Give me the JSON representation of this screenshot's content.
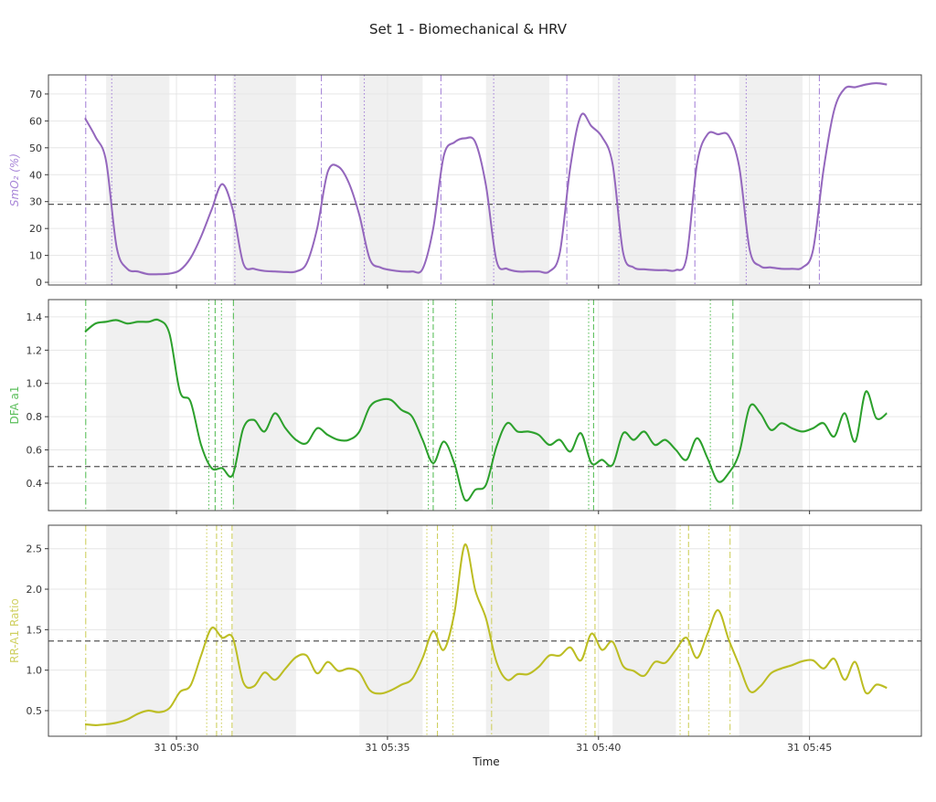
{
  "chart_data": {
    "title": "Set 1 - Biomechanical & HRV",
    "xlabel": "Time",
    "type": "line",
    "xlim": [
      "05:26:58",
      "05:47:39"
    ],
    "x_ticks": [
      {
        "t": "05:30:00",
        "label": "31 05:30"
      },
      {
        "t": "05:35:00",
        "label": "31 05:35"
      },
      {
        "t": "05:40:00",
        "label": "31 05:40"
      },
      {
        "t": "05:45:00",
        "label": "31 05:45"
      }
    ],
    "grid": true,
    "shaded_intervals": [
      [
        "05:28:20",
        "05:29:50"
      ],
      [
        "05:31:20",
        "05:32:50"
      ],
      [
        "05:34:20",
        "05:35:50"
      ],
      [
        "05:37:20",
        "05:38:50"
      ],
      [
        "05:40:20",
        "05:41:50"
      ],
      [
        "05:43:20",
        "05:44:50"
      ]
    ],
    "x": [
      "05:27:50",
      "05:28:05",
      "05:28:20",
      "05:28:35",
      "05:28:50",
      "05:29:05",
      "05:29:20",
      "05:29:35",
      "05:29:50",
      "05:30:05",
      "05:30:20",
      "05:30:35",
      "05:30:50",
      "05:31:05",
      "05:31:20",
      "05:31:35",
      "05:31:50",
      "05:32:05",
      "05:32:20",
      "05:32:35",
      "05:32:50",
      "05:33:05",
      "05:33:20",
      "05:33:35",
      "05:33:50",
      "05:34:05",
      "05:34:20",
      "05:34:35",
      "05:34:50",
      "05:35:05",
      "05:35:20",
      "05:35:35",
      "05:35:50",
      "05:36:05",
      "05:36:20",
      "05:36:35",
      "05:36:50",
      "05:37:05",
      "05:37:20",
      "05:37:35",
      "05:37:50",
      "05:38:05",
      "05:38:20",
      "05:38:35",
      "05:38:50",
      "05:39:05",
      "05:39:20",
      "05:39:35",
      "05:39:50",
      "05:40:05",
      "05:40:20",
      "05:40:35",
      "05:40:50",
      "05:41:05",
      "05:41:20",
      "05:41:35",
      "05:41:50",
      "05:42:05",
      "05:42:20",
      "05:42:35",
      "05:42:50",
      "05:43:05",
      "05:43:20",
      "05:43:35",
      "05:43:50",
      "05:44:05",
      "05:44:20",
      "05:44:35",
      "05:44:50",
      "05:45:05",
      "05:45:20",
      "05:45:35",
      "05:45:50",
      "05:46:05",
      "05:46:20",
      "05:46:35",
      "05:46:50"
    ],
    "panels": [
      {
        "ylabel": "SmO₂ (%)",
        "color": "#9467bd",
        "label_color": "#a886d8",
        "ylim": [
          -1,
          77.1
        ],
        "yticks": [
          0,
          10,
          20,
          30,
          40,
          50,
          60,
          70
        ],
        "ytick_labels": [
          "0",
          "10",
          "20",
          "30",
          "40",
          "50",
          "60",
          "70"
        ],
        "threshold": 29,
        "values": [
          61,
          54,
          45,
          13,
          5,
          4,
          3,
          3,
          3.2,
          4.5,
          9,
          17,
          27,
          36.5,
          27,
          7,
          5,
          4.2,
          4,
          3.8,
          4,
          7,
          20,
          41,
          43,
          37,
          25,
          8.5,
          5.5,
          4.5,
          4,
          4,
          5,
          20,
          47,
          52,
          53.5,
          52,
          36,
          8,
          5,
          4,
          4,
          4,
          4,
          11,
          43,
          62,
          58,
          54,
          44,
          11,
          5.5,
          4.8,
          4.5,
          4.5,
          4.5,
          9,
          44,
          55,
          55,
          54.5,
          43,
          12,
          6,
          5.5,
          5,
          5,
          5.5,
          12,
          42,
          64,
          72,
          72.5,
          73.5,
          74,
          73.5
        ],
        "markers": [
          {
            "t": "05:27:51",
            "style": "dashdot"
          },
          {
            "t": "05:28:28",
            "style": "dotted"
          },
          {
            "t": "05:30:55",
            "style": "dashdot"
          },
          {
            "t": "05:31:23",
            "style": "dotted"
          },
          {
            "t": "05:33:26",
            "style": "dashdot"
          },
          {
            "t": "05:34:27",
            "style": "dotted"
          },
          {
            "t": "05:36:16",
            "style": "dashdot"
          },
          {
            "t": "05:37:31",
            "style": "dotted"
          },
          {
            "t": "05:39:15",
            "style": "dashdot"
          },
          {
            "t": "05:40:29",
            "style": "dotted"
          },
          {
            "t": "05:42:17",
            "style": "dashdot"
          },
          {
            "t": "05:43:30",
            "style": "dotted"
          },
          {
            "t": "05:45:14",
            "style": "dashdot"
          }
        ]
      },
      {
        "ylabel": "DFA a1",
        "color": "#2ca02c",
        "label_color": "#5cbf5c",
        "ylim": [
          0.235,
          1.504
        ],
        "yticks": [
          0.4,
          0.6,
          0.8,
          1.0,
          1.2,
          1.4
        ],
        "ytick_labels": [
          "0.4",
          "0.6",
          "0.8",
          "1.0",
          "1.2",
          "1.4"
        ],
        "threshold": 0.5,
        "values": [
          1.31,
          1.36,
          1.37,
          1.38,
          1.36,
          1.37,
          1.37,
          1.38,
          1.3,
          0.95,
          0.89,
          0.63,
          0.49,
          0.49,
          0.45,
          0.73,
          0.78,
          0.71,
          0.82,
          0.73,
          0.66,
          0.64,
          0.73,
          0.69,
          0.66,
          0.66,
          0.71,
          0.86,
          0.9,
          0.9,
          0.84,
          0.8,
          0.66,
          0.52,
          0.65,
          0.52,
          0.3,
          0.36,
          0.39,
          0.62,
          0.76,
          0.71,
          0.71,
          0.69,
          0.63,
          0.66,
          0.59,
          0.7,
          0.52,
          0.54,
          0.51,
          0.7,
          0.66,
          0.71,
          0.63,
          0.66,
          0.6,
          0.54,
          0.67,
          0.55,
          0.41,
          0.46,
          0.58,
          0.86,
          0.82,
          0.72,
          0.76,
          0.73,
          0.71,
          0.73,
          0.76,
          0.68,
          0.82,
          0.65,
          0.95,
          0.79,
          0.82
        ],
        "markers": [
          {
            "t": "05:27:51",
            "style": "dashdot"
          },
          {
            "t": "05:30:46",
            "style": "dotted"
          },
          {
            "t": "05:30:55",
            "style": "dashed"
          },
          {
            "t": "05:31:04",
            "style": "dotted"
          },
          {
            "t": "05:31:21",
            "style": "dashdot"
          },
          {
            "t": "05:35:58",
            "style": "dotted"
          },
          {
            "t": "05:36:05",
            "style": "dashed"
          },
          {
            "t": "05:36:37",
            "style": "dotted"
          },
          {
            "t": "05:37:29",
            "style": "dashdot"
          },
          {
            "t": "05:39:46",
            "style": "dotted"
          },
          {
            "t": "05:39:53",
            "style": "dashed"
          },
          {
            "t": "05:42:39",
            "style": "dotted"
          },
          {
            "t": "05:43:11",
            "style": "dashdot"
          }
        ]
      },
      {
        "ylabel": "RR-A1 Ratio",
        "color": "#bcbd22",
        "label_color": "#cfd060",
        "ylim": [
          0.184,
          2.79
        ],
        "yticks": [
          0.5,
          1.0,
          1.5,
          2.0,
          2.5
        ],
        "ytick_labels": [
          "0.5",
          "1.0",
          "1.5",
          "2.0",
          "2.5"
        ],
        "threshold": 1.36,
        "values": [
          0.33,
          0.32,
          0.33,
          0.35,
          0.39,
          0.46,
          0.5,
          0.48,
          0.53,
          0.73,
          0.81,
          1.18,
          1.52,
          1.4,
          1.4,
          0.85,
          0.8,
          0.97,
          0.88,
          1.02,
          1.16,
          1.18,
          0.96,
          1.1,
          0.99,
          1.02,
          0.97,
          0.75,
          0.71,
          0.75,
          0.82,
          0.89,
          1.15,
          1.48,
          1.25,
          1.7,
          2.55,
          1.98,
          1.64,
          1.1,
          0.88,
          0.95,
          0.95,
          1.04,
          1.18,
          1.18,
          1.28,
          1.12,
          1.45,
          1.25,
          1.35,
          1.05,
          0.99,
          0.93,
          1.1,
          1.09,
          1.25,
          1.4,
          1.15,
          1.45,
          1.74,
          1.38,
          1.06,
          0.74,
          0.8,
          0.96,
          1.02,
          1.06,
          1.11,
          1.12,
          1.02,
          1.14,
          0.88,
          1.1,
          0.72,
          0.82,
          0.78
        ],
        "markers": [
          {
            "t": "05:27:51",
            "style": "dashdot"
          },
          {
            "t": "05:30:43",
            "style": "dotted"
          },
          {
            "t": "05:30:57",
            "style": "dashed"
          },
          {
            "t": "05:31:04",
            "style": "dotted"
          },
          {
            "t": "05:31:19",
            "style": "dashed"
          },
          {
            "t": "05:35:56",
            "style": "dotted"
          },
          {
            "t": "05:36:11",
            "style": "dashed"
          },
          {
            "t": "05:36:33",
            "style": "dotted"
          },
          {
            "t": "05:37:28",
            "style": "dashdot"
          },
          {
            "t": "05:39:42",
            "style": "dotted"
          },
          {
            "t": "05:39:55",
            "style": "dashed"
          },
          {
            "t": "05:41:56",
            "style": "dotted"
          },
          {
            "t": "05:42:08",
            "style": "dashed"
          },
          {
            "t": "05:42:37",
            "style": "dotted"
          },
          {
            "t": "05:43:07",
            "style": "dashdot"
          }
        ]
      }
    ]
  }
}
